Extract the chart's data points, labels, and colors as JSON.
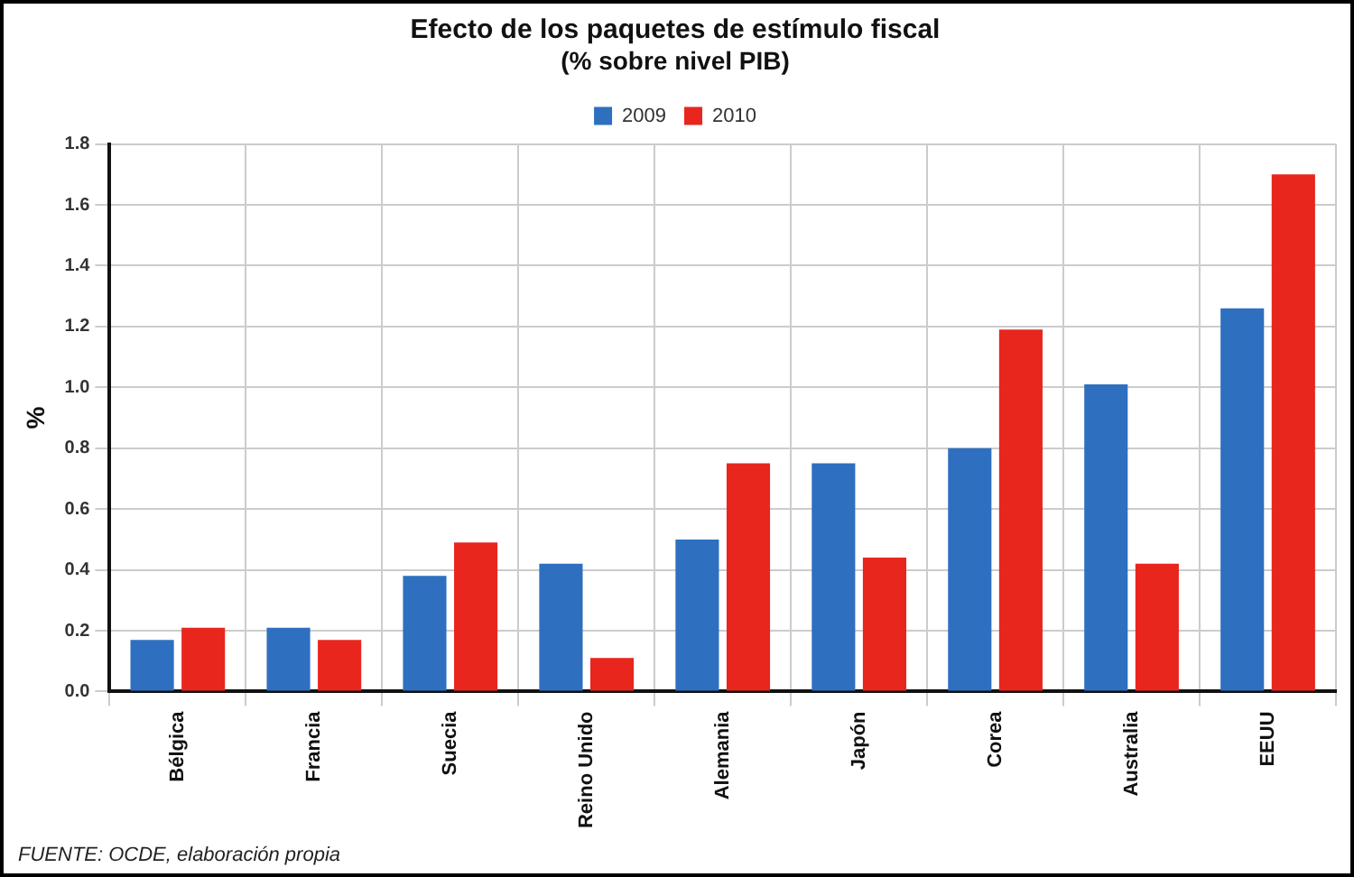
{
  "chart_data": {
    "type": "bar",
    "title": "Efecto de los paquetes de estímulo fiscal",
    "subtitle": "(% sobre nivel PIB)",
    "ylabel": "%",
    "categories": [
      "Bélgica",
      "Francia",
      "Suecia",
      "Reino Unido",
      "Alemania",
      "Japón",
      "Corea",
      "Australia",
      "EEUU"
    ],
    "series": [
      {
        "name": "2009",
        "color": "#2e6fc0",
        "values": [
          0.17,
          0.21,
          0.38,
          0.42,
          0.5,
          0.75,
          0.8,
          1.01,
          1.26
        ]
      },
      {
        "name": "2010",
        "color": "#e8261e",
        "values": [
          0.21,
          0.17,
          0.49,
          0.11,
          0.75,
          0.44,
          1.19,
          0.42,
          1.7
        ]
      }
    ],
    "ylim": [
      0,
      1.8
    ],
    "yticks": [
      {
        "value": 0,
        "label": "0.0"
      },
      {
        "value": 0.2,
        "label": "0.2"
      },
      {
        "value": 0.4,
        "label": "0.4"
      },
      {
        "value": 0.6,
        "label": "0.6"
      },
      {
        "value": 0.8,
        "label": "0.8"
      },
      {
        "value": 1,
        "label": "1.0"
      },
      {
        "value": 1.2,
        "label": "1.2"
      },
      {
        "value": 1.4,
        "label": "1.4"
      },
      {
        "value": 1.6,
        "label": "1.6"
      },
      {
        "value": 1.8,
        "label": "1.8"
      }
    ],
    "grid": true,
    "legend": "top",
    "annotations": [
      "FUENTE: OCDE, elaboración propia"
    ]
  }
}
